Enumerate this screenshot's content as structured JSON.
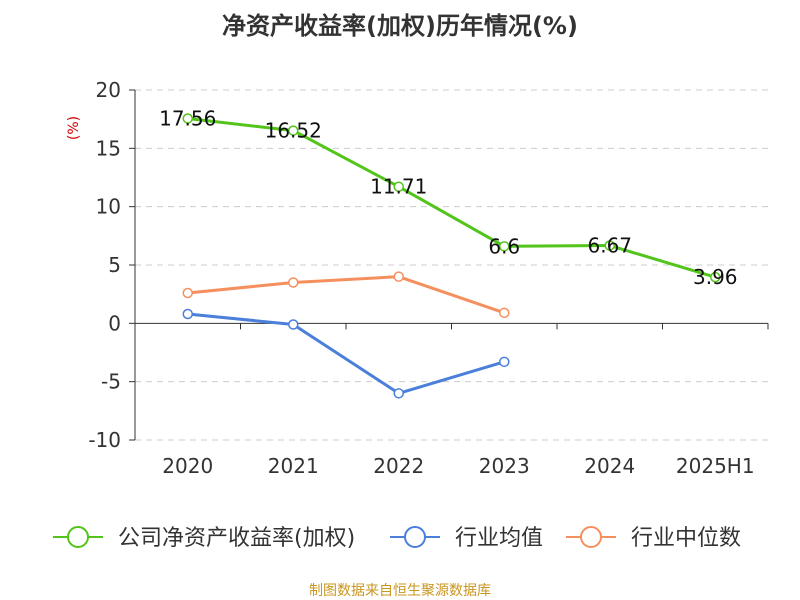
{
  "chart_data": {
    "type": "line",
    "title": "净资产收益率(加权)历年情况(%)",
    "ylabel": "(%)",
    "xlabel": "",
    "categories": [
      "2020",
      "2021",
      "2022",
      "2023",
      "2024",
      "2025H1"
    ],
    "ylim": [
      -10,
      20
    ],
    "yticks": [
      20,
      15,
      10,
      5,
      0,
      -5,
      -10
    ],
    "grid": true,
    "legend_position": "bottom",
    "series": [
      {
        "name": "公司净资产收益率(加权)",
        "color": "#52c41a",
        "values": [
          17.56,
          16.52,
          11.71,
          6.6,
          6.67,
          3.96
        ],
        "labels": [
          "17.56",
          "16.52",
          "11.71",
          "6.6",
          "6.67",
          "3.96"
        ]
      },
      {
        "name": "行业均值",
        "color": "#4a7fdb",
        "values": [
          0.8,
          -0.1,
          -6.0,
          -3.3,
          null,
          null
        ]
      },
      {
        "name": "行业中位数",
        "color": "#f5905e",
        "values": [
          2.6,
          3.5,
          4.0,
          0.9,
          null,
          null
        ]
      }
    ]
  },
  "source": "制图数据来自恒生聚源数据库"
}
